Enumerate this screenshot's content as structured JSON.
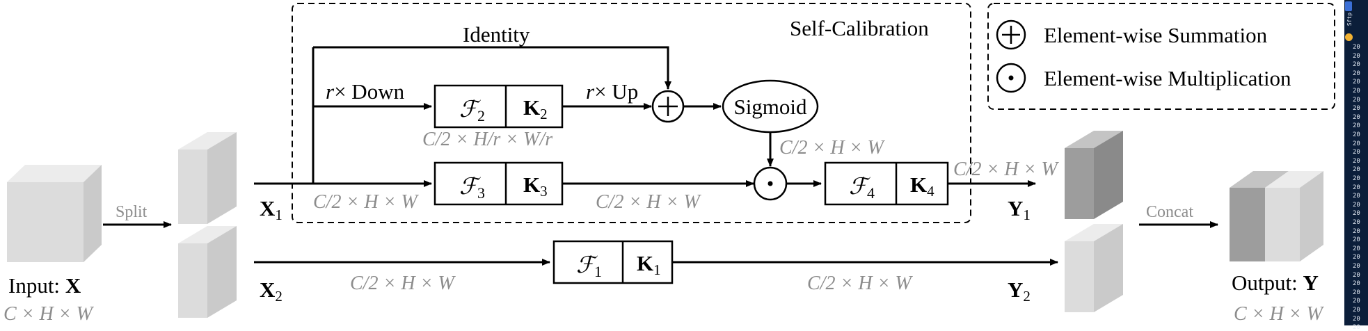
{
  "labels": {
    "identity": "Identity",
    "self_calibration": "Self-Calibration",
    "r_down": "× Down",
    "r_up": "× Up",
    "r": "r",
    "split": "Split",
    "concat": "Concat",
    "sigmoid": "Sigmoid",
    "input_prefix": "Input: ",
    "input_var": "X",
    "output_prefix": "Output: ",
    "output_var": "Y",
    "x_var": "X",
    "y_var": "Y",
    "sub1": "1",
    "sub2": "2",
    "sub3": "3",
    "sub4": "4"
  },
  "dims": {
    "half_hw": "C/2 × H × W",
    "down_hw": "C/2 × H/r × W/r",
    "full_hw": "C × H × W"
  },
  "legend": {
    "summation": "Element-wise Summation",
    "multiplication": "Element-wise Multiplication"
  },
  "blocks": [
    {
      "f": "ℱ",
      "k": "K",
      "sub": "2"
    },
    {
      "f": "ℱ",
      "k": "K",
      "sub": "3"
    },
    {
      "f": "ℱ",
      "k": "K",
      "sub": "4"
    },
    {
      "f": "ℱ",
      "k": "K",
      "sub": "1"
    }
  ],
  "side_strip": {
    "label": "Sftp",
    "row_text": "20"
  },
  "colors": {
    "cube_light_front": "#dcdcdc",
    "cube_light_top": "#ececec",
    "cube_light_side": "#cacaca",
    "cube_dark_front": "#9d9d9d",
    "cube_dark_top": "#c4c4c4",
    "cube_dark_side": "#8a8a8a",
    "dim_text": "#8c8c8c",
    "strip_bg": "#0b1e3a"
  }
}
